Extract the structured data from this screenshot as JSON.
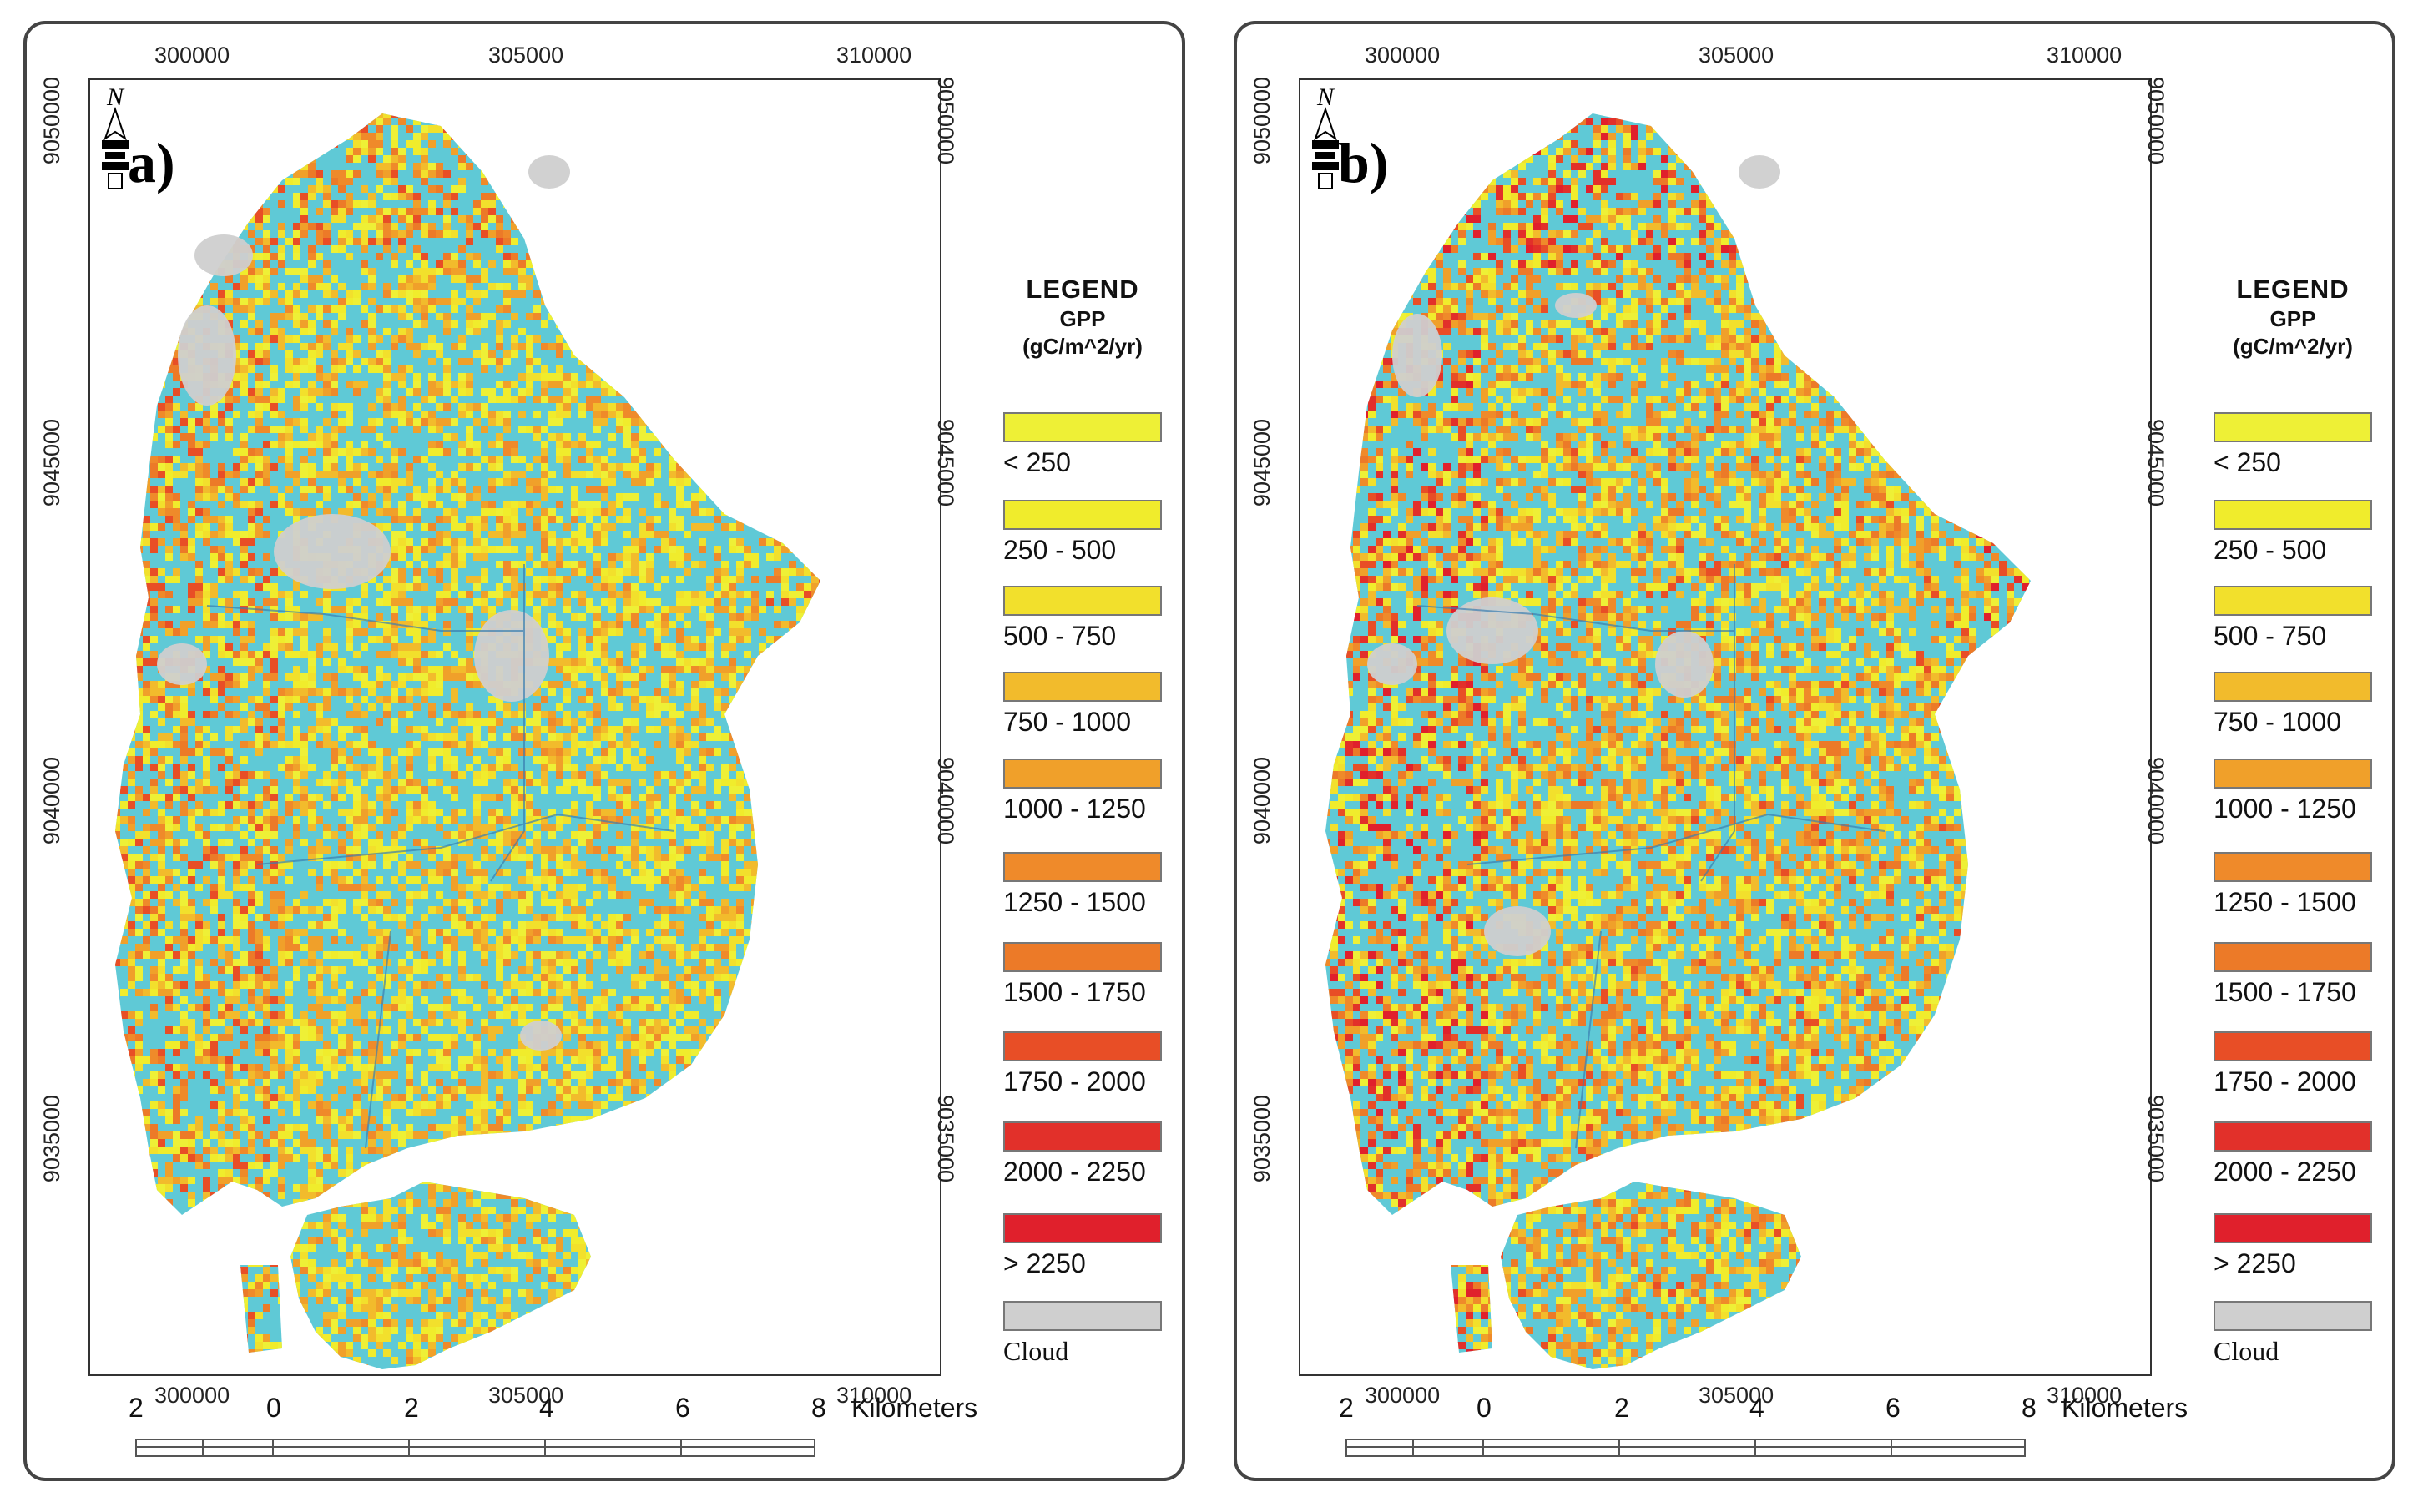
{
  "panels": [
    {
      "label": "a)",
      "x_ticks_top": [
        "300000",
        "305000",
        "310000"
      ],
      "x_ticks_bottom": [
        "300000",
        "305000",
        "310000"
      ],
      "y_ticks_left": [
        "9050000",
        "9045000",
        "9040000",
        "9035000"
      ],
      "y_ticks_right": [
        "9050000",
        "9045000",
        "9040000",
        "9035000"
      ],
      "legend": {
        "title": "LEGEND",
        "subtitle": "GPP",
        "unit": "(gC/m^2/yr)",
        "classes": [
          {
            "label": "< 250",
            "color": "#eef036"
          },
          {
            "label": "250 - 500",
            "color": "#f0ec2c"
          },
          {
            "label": "500 - 750",
            "color": "#f2e02c"
          },
          {
            "label": "750 - 1000",
            "color": "#f2bb2c"
          },
          {
            "label": "1000 - 1250",
            "color": "#f0a02a"
          },
          {
            "label": "1250 - 1500",
            "color": "#ef8a2a"
          },
          {
            "label": "1500 - 1750",
            "color": "#ec7a28"
          },
          {
            "label": "1750 - 2000",
            "color": "#e84e26"
          },
          {
            "label": "2000 - 2250",
            "color": "#e2302a"
          },
          {
            "label": "> 2250",
            "color": "#e0202c"
          }
        ],
        "cloud": {
          "label": "Cloud",
          "color": "#cfcfcf"
        }
      },
      "scale": {
        "ticks": [
          "2",
          "0",
          "2",
          "4",
          "6",
          "8"
        ],
        "unit": "Kilometers"
      }
    },
    {
      "label": "b)",
      "x_ticks_top": [
        "300000",
        "305000",
        "310000"
      ],
      "x_ticks_bottom": [
        "300000",
        "305000",
        "310000"
      ],
      "y_ticks_left": [
        "9050000",
        "9045000",
        "9040000",
        "9035000"
      ],
      "y_ticks_right": [
        "9050000",
        "9045000",
        "9040000",
        "9035000"
      ],
      "legend": {
        "title": "LEGEND",
        "subtitle": "GPP",
        "unit": "(gC/m^2/yr)",
        "classes": [
          {
            "label": "< 250",
            "color": "#eef036"
          },
          {
            "label": "250 - 500",
            "color": "#f0ec2c"
          },
          {
            "label": "500 - 750",
            "color": "#f2e02c"
          },
          {
            "label": "750 - 1000",
            "color": "#f2bb2c"
          },
          {
            "label": "1000 - 1250",
            "color": "#f0a02a"
          },
          {
            "label": "1250 - 1500",
            "color": "#ef8a2a"
          },
          {
            "label": "1500 - 1750",
            "color": "#ec7a28"
          },
          {
            "label": "1750 - 2000",
            "color": "#e84e26"
          },
          {
            "label": "2000 - 2250",
            "color": "#e2302a"
          },
          {
            "label": "> 2250",
            "color": "#e0202c"
          }
        ],
        "cloud": {
          "label": "Cloud",
          "color": "#cfcfcf"
        }
      },
      "scale": {
        "ticks": [
          "2",
          "0",
          "2",
          "4",
          "6",
          "8"
        ],
        "unit": "Kilometers"
      }
    }
  ],
  "map_colors": {
    "background_class": "#5fc9d6",
    "outline": "#3a7fb0"
  }
}
